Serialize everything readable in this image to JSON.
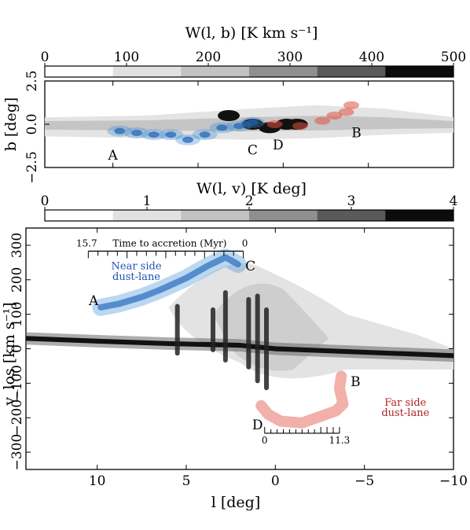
{
  "chart_data": [
    {
      "type": "colorbar",
      "label": "W(l, b) [K km s⁻¹]",
      "ticks": [
        "0",
        "100",
        "200",
        "300",
        "400",
        "500"
      ],
      "range": [
        0,
        500
      ],
      "levels": 6,
      "colors": [
        "#ffffff",
        "#e1e1e1",
        "#c2c2c2",
        "#8f8f8f",
        "#5a5a5a",
        "#0c0c0c"
      ]
    },
    {
      "type": "heatmap",
      "title": "",
      "xlabel": "",
      "ylabel": "b [deg]",
      "xlim": [
        14,
        -10
      ],
      "ylim": [
        -2.5,
        2.5
      ],
      "yticks": [
        "2.5",
        "0.0",
        "−2.5"
      ],
      "grey_band": [
        {
          "l": 14,
          "b_top": 0.4,
          "b_bot": -0.7
        },
        {
          "l": 8,
          "b_top": 0.5,
          "b_bot": -0.8
        },
        {
          "l": 2,
          "b_top": 0.9,
          "b_bot": -0.9
        },
        {
          "l": -2,
          "b_top": 1.1,
          "b_bot": -0.8
        },
        {
          "l": -6,
          "b_top": 0.9,
          "b_bot": -0.6
        },
        {
          "l": -10,
          "b_top": 0.4,
          "b_bot": -0.5
        }
      ],
      "near_side_lane": [
        {
          "l": 9.6,
          "b": -0.4
        },
        {
          "l": 8.6,
          "b": -0.5
        },
        {
          "l": 7.6,
          "b": -0.6
        },
        {
          "l": 6.6,
          "b": -0.6
        },
        {
          "l": 5.6,
          "b": -0.9
        },
        {
          "l": 4.6,
          "b": -0.6
        },
        {
          "l": 3.6,
          "b": -0.2
        },
        {
          "l": 2.6,
          "b": -0.1
        },
        {
          "l": 1.8,
          "b": 0.1
        }
      ],
      "far_side_lane": [
        {
          "l": 0.5,
          "b": 0.0
        },
        {
          "l": -1.0,
          "b": -0.1
        },
        {
          "l": -2.3,
          "b": 0.2
        },
        {
          "l": -3.0,
          "b": 0.5
        },
        {
          "l": -3.7,
          "b": 0.7
        },
        {
          "l": -4.0,
          "b": 1.1
        }
      ],
      "dense_core": [
        {
          "l": 3.2,
          "b": 0.5
        },
        {
          "l": 1.8,
          "b": 0.0
        },
        {
          "l": 0.8,
          "b": -0.2
        },
        {
          "l": -0.2,
          "b": 0.0
        },
        {
          "l": -0.8,
          "b": 0.0
        }
      ],
      "annotations": [
        {
          "text": "A",
          "l": 10.0,
          "b": -1.5
        },
        {
          "text": "C",
          "l": 1.8,
          "b": -1.2
        },
        {
          "text": "D",
          "l": 0.3,
          "b": -0.9
        },
        {
          "text": "B",
          "l": -4.3,
          "b": -0.2
        }
      ]
    },
    {
      "type": "colorbar",
      "label": "W(l, v) [K deg]",
      "ticks": [
        "0",
        "1",
        "2",
        "3",
        "4"
      ],
      "range": [
        0,
        4
      ],
      "levels": 6,
      "colors": [
        "#ffffff",
        "#e1e1e1",
        "#c2c2c2",
        "#8f8f8f",
        "#5a5a5a",
        "#0c0c0c"
      ]
    },
    {
      "type": "heatmap",
      "title": "",
      "xlabel": "l [deg]",
      "ylabel": "v_los [km s⁻¹]",
      "xlim": [
        14,
        -10
      ],
      "ylim": [
        -350,
        350
      ],
      "xticks": [
        10,
        5,
        0,
        -5,
        -10
      ],
      "xticklabels": [
        "10",
        "5",
        "0",
        "−5",
        "−10"
      ],
      "yticks": [
        300,
        200,
        100,
        0,
        -100,
        -200,
        -300
      ],
      "yticklabels": [
        "300",
        "200",
        "100",
        "0",
        "−100",
        "−200",
        "−300"
      ],
      "main_band": [
        {
          "l": 14,
          "v": 30
        },
        {
          "l": 10,
          "v": 22
        },
        {
          "l": 6,
          "v": 15
        },
        {
          "l": 2,
          "v": 10
        },
        {
          "l": 0,
          "v": 0
        },
        {
          "l": -4,
          "v": -8
        },
        {
          "l": -10,
          "v": -20
        }
      ],
      "near_side_lane": [
        {
          "l": 9.8,
          "v": 120
        },
        {
          "l": 8.8,
          "v": 130
        },
        {
          "l": 7.5,
          "v": 150
        },
        {
          "l": 6.5,
          "v": 170
        },
        {
          "l": 5.0,
          "v": 205
        },
        {
          "l": 3.8,
          "v": 240
        },
        {
          "l": 2.8,
          "v": 265
        },
        {
          "l": 2.1,
          "v": 245
        }
      ],
      "far_side_lane": [
        {
          "l": 0.8,
          "v": -165
        },
        {
          "l": 0.4,
          "v": -190
        },
        {
          "l": -0.3,
          "v": -210
        },
        {
          "l": -1.5,
          "v": -215
        },
        {
          "l": -2.6,
          "v": -195
        },
        {
          "l": -3.4,
          "v": -180
        },
        {
          "l": -3.8,
          "v": -160
        },
        {
          "l": -3.6,
          "v": -115
        },
        {
          "l": -3.7,
          "v": -80
        }
      ],
      "vertical_features": [
        {
          "l": 5.5,
          "v_top": 130,
          "v_bot": -20
        },
        {
          "l": 3.5,
          "v_top": 120,
          "v_bot": -10
        },
        {
          "l": 2.8,
          "v_top": 170,
          "v_bot": -40
        },
        {
          "l": 1.5,
          "v_top": 150,
          "v_bot": -60
        },
        {
          "l": 1.0,
          "v_top": 160,
          "v_bot": -100
        },
        {
          "l": 0.5,
          "v_top": 120,
          "v_bot": -120
        }
      ],
      "annotations": [
        {
          "text": "A",
          "l": 10.2,
          "v": 140
        },
        {
          "text": "C",
          "l": 1.4,
          "v": 240
        },
        {
          "text": "B",
          "l": -4.5,
          "v": -95
        },
        {
          "text": "D",
          "l": 1.0,
          "v": -220
        }
      ],
      "labels": {
        "near_side": [
          "Near side",
          "dust-lane"
        ],
        "far_side": [
          "Far side",
          "dust-lane"
        ],
        "time_axis": "Time to accretion (Myr)",
        "near_time_start": "15.7",
        "near_time_end": "0",
        "far_time_start": "0",
        "far_time_end": "11.3"
      },
      "colors": {
        "near_side": "#1f4fb4",
        "far_side": "#b22222",
        "near_lane_fill": "#3c8fd8",
        "far_lane_fill": "#e05040"
      }
    }
  ]
}
